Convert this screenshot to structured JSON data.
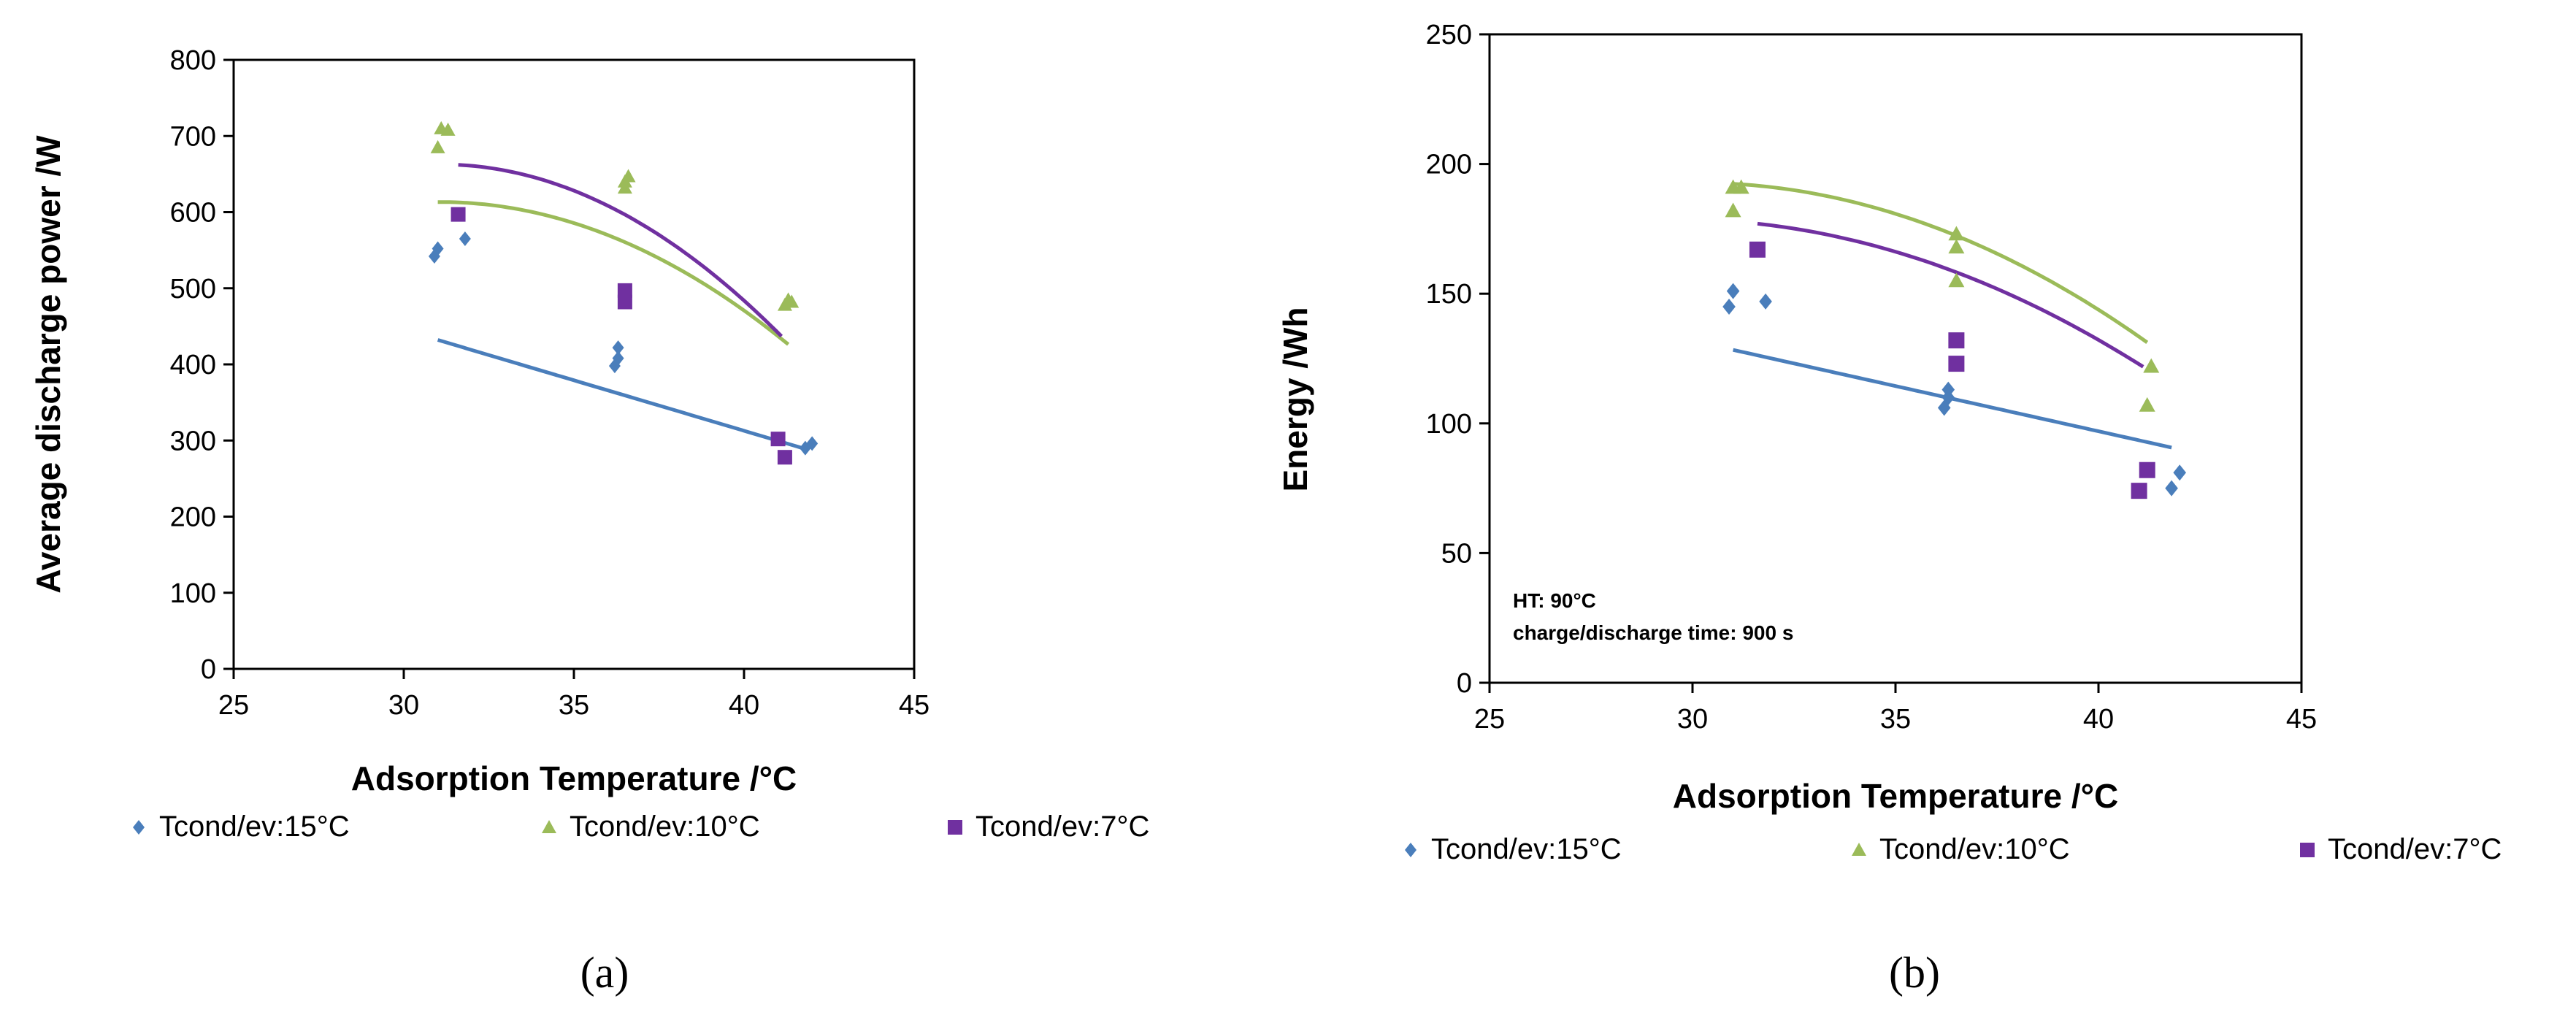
{
  "chart_data": [
    {
      "type": "scatter",
      "caption": "(a)",
      "xlabel": "Adsorption Temperature /°C",
      "ylabel": "Average discharge power /W",
      "xlim": [
        25,
        45
      ],
      "ylim": [
        0,
        800
      ],
      "xticks": [
        "25",
        "30",
        "35",
        "40",
        "45"
      ],
      "yticks": [
        "0",
        "100",
        "200",
        "300",
        "400",
        "500",
        "600",
        "700",
        "800"
      ],
      "grid": false,
      "legend_position": "bottom",
      "annotations": [],
      "series": [
        {
          "name": "Tcond/ev:15°C",
          "marker": "diamond",
          "color": "#4a7ebb",
          "points": [
            [
              30.9,
              542
            ],
            [
              31.0,
              552
            ],
            [
              31.8,
              565
            ],
            [
              36.2,
              398
            ],
            [
              36.3,
              408
            ],
            [
              36.3,
              422
            ],
            [
              41.8,
              290
            ],
            [
              42.0,
              296
            ]
          ],
          "trend": {
            "kind": "linear",
            "x_range": [
              31.0,
              41.9
            ],
            "coef": [
              843.2,
              -13.26
            ]
          }
        },
        {
          "name": "Tcond/ev:10°C",
          "marker": "triangle",
          "color": "#9bbb59",
          "points": [
            [
              31.0,
              685
            ],
            [
              31.1,
              710
            ],
            [
              31.3,
              708
            ],
            [
              36.5,
              632
            ],
            [
              36.5,
              640
            ],
            [
              36.6,
              647
            ],
            [
              41.2,
              478
            ],
            [
              41.3,
              485
            ],
            [
              41.4,
              482
            ]
          ],
          "trend": {
            "kind": "quadratic",
            "x_range": [
              31.0,
              41.3
            ],
            "coef": [
              -1109.9,
              110.94,
              -1.7856
            ]
          }
        },
        {
          "name": "Tcond/ev:7°C",
          "marker": "square",
          "color": "#7030a0",
          "points": [
            [
              31.6,
              597
            ],
            [
              36.5,
              497
            ],
            [
              36.5,
              482
            ],
            [
              41.0,
              302
            ],
            [
              41.2,
              278
            ]
          ],
          "trend": {
            "kind": "quadratic",
            "x_range": [
              31.6,
              41.1
            ],
            "coef": [
              -1513.0,
              139.98,
              -2.2515
            ]
          }
        }
      ]
    },
    {
      "type": "scatter",
      "caption": "(b)",
      "xlabel": "Adsorption Temperature /°C",
      "ylabel": "Energy /Wh",
      "xlim": [
        25,
        45
      ],
      "ylim": [
        0,
        250
      ],
      "xticks": [
        "25",
        "30",
        "35",
        "40",
        "45"
      ],
      "yticks": [
        "0",
        "50",
        "100",
        "150",
        "200",
        "250"
      ],
      "grid": false,
      "legend_position": "bottom",
      "annotations": [
        "HT: 90°C",
        "charge/discharge time: 900 s"
      ],
      "series": [
        {
          "name": "Tcond/ev:15°C",
          "marker": "diamond",
          "color": "#4a7ebb",
          "points": [
            [
              30.9,
              145
            ],
            [
              31.0,
              151
            ],
            [
              31.8,
              147
            ],
            [
              36.2,
              106
            ],
            [
              36.3,
              110
            ],
            [
              36.3,
              113
            ],
            [
              41.8,
              75
            ],
            [
              42.0,
              81
            ]
          ],
          "trend": {
            "kind": "linear",
            "x_range": [
              31.0,
              41.8
            ],
            "coef": [
              236.4,
              -3.486
            ]
          }
        },
        {
          "name": "Tcond/ev:10°C",
          "marker": "triangle",
          "color": "#9bbb59",
          "points": [
            [
              31.0,
              182
            ],
            [
              31.0,
              191
            ],
            [
              31.2,
              191
            ],
            [
              36.5,
              155
            ],
            [
              36.5,
              168
            ],
            [
              36.5,
              173
            ],
            [
              41.2,
              107
            ],
            [
              41.3,
              122
            ]
          ],
          "trend": {
            "kind": "quadratic",
            "x_range": [
              31.0,
              41.2
            ],
            "coef": [
              -262.1,
              30.2,
              -0.5013
            ]
          }
        },
        {
          "name": "Tcond/ev:7°C",
          "marker": "square",
          "color": "#7030a0",
          "points": [
            [
              31.6,
              167
            ],
            [
              36.5,
              132
            ],
            [
              36.5,
              123
            ],
            [
              41.0,
              74
            ],
            [
              41.2,
              82
            ]
          ],
          "trend": {
            "kind": "quadratic",
            "x_range": [
              31.6,
              41.1
            ],
            "coef": [
              -199.5,
              25.54,
              -0.4312
            ]
          }
        }
      ]
    }
  ]
}
